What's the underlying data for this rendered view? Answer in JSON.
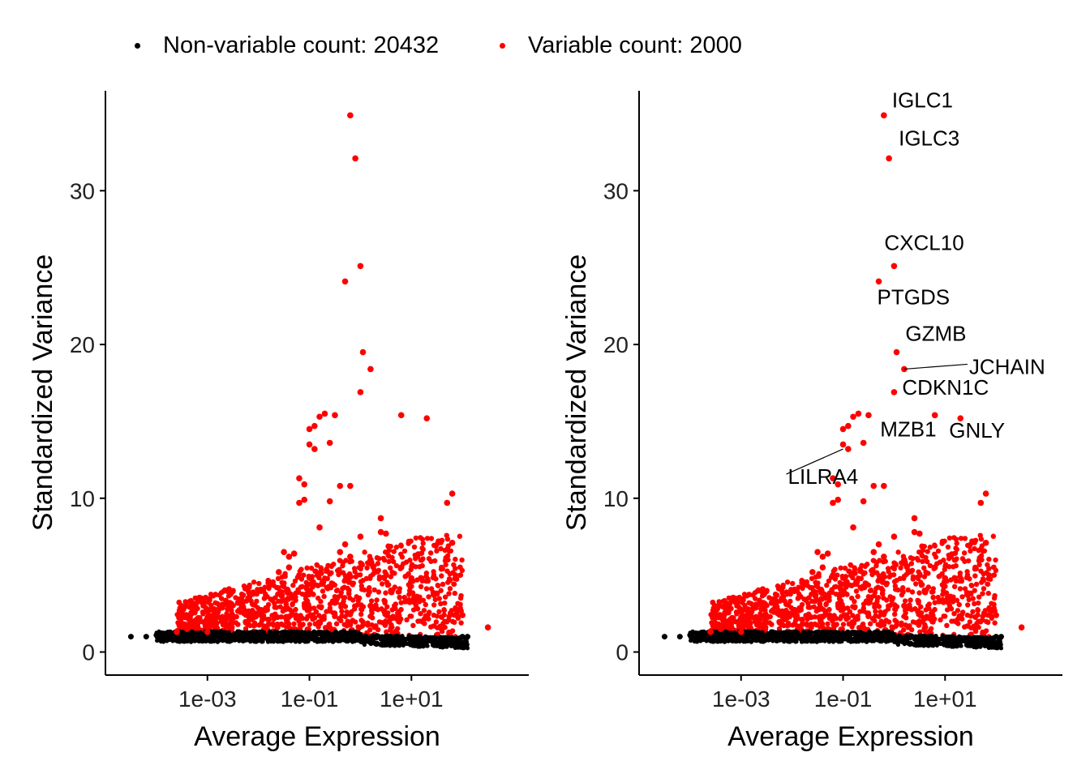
{
  "legend": {
    "items": [
      {
        "label": "Non-variable count: 20432",
        "color": "#000000"
      },
      {
        "label": "Variable count: 2000",
        "color": "#ff0000"
      }
    ]
  },
  "colors": {
    "non_variable": "#000000",
    "variable": "#ff0000",
    "axis": "#000000"
  },
  "chart_data": [
    {
      "type": "scatter",
      "title": "",
      "xlabel": "Average Expression",
      "ylabel": "Standardized Variance",
      "x_scale": "log10",
      "xlim": [
        1e-05,
        2000
      ],
      "ylim": [
        -1.5,
        36.5
      ],
      "x_ticks": [
        {
          "value": 0.001,
          "label": "1e-03"
        },
        {
          "value": 0.1,
          "label": "1e-01"
        },
        {
          "value": 10,
          "label": "1e+01"
        }
      ],
      "y_ticks": [
        {
          "value": 0,
          "label": "0"
        },
        {
          "value": 10,
          "label": "10"
        },
        {
          "value": 20,
          "label": "20"
        },
        {
          "value": 30,
          "label": "30"
        }
      ],
      "legend_placement": "top",
      "series": [
        {
          "name": "Non-variable count: 20432",
          "color": "#000000",
          "points": [
            [
              3.16e-05,
              1.0
            ],
            [
              6.31e-05,
              1.0
            ],
            [
              0.0001,
              1.1
            ],
            [
              0.000158,
              1.1
            ],
            [
              0.000251,
              1.0
            ],
            [
              0.000398,
              1.0
            ],
            [
              0.001,
              1.0
            ],
            [
              0.00316,
              1.0
            ],
            [
              0.01,
              1.0
            ],
            [
              0.0316,
              1.0
            ],
            [
              0.1,
              1.0
            ],
            [
              0.316,
              0.9
            ],
            [
              1.0,
              0.8
            ],
            [
              3.16,
              0.7
            ],
            [
              10,
              0.6
            ],
            [
              31.6,
              0.6
            ],
            [
              63.1,
              0.8
            ],
            [
              100,
              1.0
            ],
            [
              125.9,
              1.0
            ]
          ]
        },
        {
          "name": "Variable count: 2000",
          "color": "#ff0000",
          "points": [
            [
              0.000251,
              1.3
            ],
            [
              0.000398,
              1.5
            ],
            [
              0.000631,
              1.8
            ],
            [
              0.001,
              2.0
            ],
            [
              0.00158,
              2.3
            ],
            [
              0.00251,
              2.8
            ],
            [
              0.00398,
              3.2
            ],
            [
              0.00631,
              3.5
            ],
            [
              0.01,
              4.0
            ],
            [
              0.0158,
              4.5
            ],
            [
              0.0251,
              5.2
            ],
            [
              0.0316,
              6.5
            ],
            [
              0.0398,
              6.2
            ],
            [
              0.0501,
              6.4
            ],
            [
              0.0398,
              5.5
            ],
            [
              0.0631,
              9.7
            ],
            [
              0.0631,
              11.3
            ],
            [
              0.0794,
              10.9
            ],
            [
              0.0794,
              9.9
            ],
            [
              0.1,
              13.5
            ],
            [
              0.1,
              14.5
            ],
            [
              0.126,
              14.7
            ],
            [
              0.126,
              13.2
            ],
            [
              0.158,
              8.1
            ],
            [
              0.158,
              15.3
            ],
            [
              0.2,
              15.5
            ],
            [
              0.251,
              13.6
            ],
            [
              0.251,
              9.8
            ],
            [
              0.316,
              15.4
            ],
            [
              0.398,
              10.8
            ],
            [
              0.501,
              24.1
            ],
            [
              0.631,
              34.9
            ],
            [
              0.794,
              32.1
            ],
            [
              1.0,
              25.1
            ],
            [
              1.12,
              19.5
            ],
            [
              1.58,
              18.4
            ],
            [
              1.0,
              16.9
            ],
            [
              0.631,
              10.8
            ],
            [
              0.501,
              7.0
            ],
            [
              0.398,
              6.5
            ],
            [
              0.631,
              6.2
            ],
            [
              1.0,
              7.5
            ],
            [
              1.58,
              6.0
            ],
            [
              2.51,
              8.7
            ],
            [
              2.51,
              7.8
            ],
            [
              3.16,
              7.7
            ],
            [
              6.31,
              15.4
            ],
            [
              20,
              15.2
            ],
            [
              50.1,
              9.7
            ],
            [
              63.1,
              7.1
            ],
            [
              63.1,
              10.3
            ],
            [
              31.6,
              3.8
            ],
            [
              6.31,
              5.5
            ],
            [
              10,
              4.8
            ],
            [
              3.98,
              4.0
            ],
            [
              1.58,
              3.0
            ],
            [
              0.316,
              3.2
            ],
            [
              0.1,
              2.8
            ],
            [
              0.0398,
              2.3
            ],
            [
              0.0158,
              2.1
            ],
            [
              0.00631,
              1.8
            ],
            [
              0.00251,
              1.6
            ],
            [
              0.001,
              1.3
            ],
            [
              100,
              2.4
            ],
            [
              316,
              1.6
            ]
          ]
        }
      ]
    },
    {
      "type": "scatter",
      "title": "",
      "xlabel": "Average Expression",
      "ylabel": "Standardized Variance",
      "x_scale": "log10",
      "xlim": [
        1e-05,
        2000
      ],
      "ylim": [
        -1.5,
        36.5
      ],
      "x_ticks": [
        {
          "value": 0.001,
          "label": "1e-03"
        },
        {
          "value": 0.1,
          "label": "1e-01"
        },
        {
          "value": 10,
          "label": "1e+01"
        }
      ],
      "y_ticks": [
        {
          "value": 0,
          "label": "0"
        },
        {
          "value": 10,
          "label": "10"
        },
        {
          "value": 20,
          "label": "20"
        },
        {
          "value": 30,
          "label": "30"
        }
      ],
      "annotations": [
        {
          "label": "IGLC1",
          "x": 0.631,
          "y": 34.9
        },
        {
          "label": "IGLC3",
          "x": 0.794,
          "y": 32.1
        },
        {
          "label": "CXCL10",
          "x": 1.0,
          "y": 25.1
        },
        {
          "label": "PTGDS",
          "x": 0.501,
          "y": 24.1
        },
        {
          "label": "GZMB",
          "x": 1.0,
          "y": 19.5
        },
        {
          "label": "JCHAIN",
          "x": 1.58,
          "y": 18.4
        },
        {
          "label": "CDKN1C",
          "x": 1.0,
          "y": 16.9
        },
        {
          "label": "GNLY",
          "x": 20,
          "y": 15.2
        },
        {
          "label": "MZB1",
          "x": 0.398,
          "y": 13.6
        },
        {
          "label": "LILRA4",
          "x": 0.1,
          "y": 13.2
        }
      ]
    }
  ]
}
